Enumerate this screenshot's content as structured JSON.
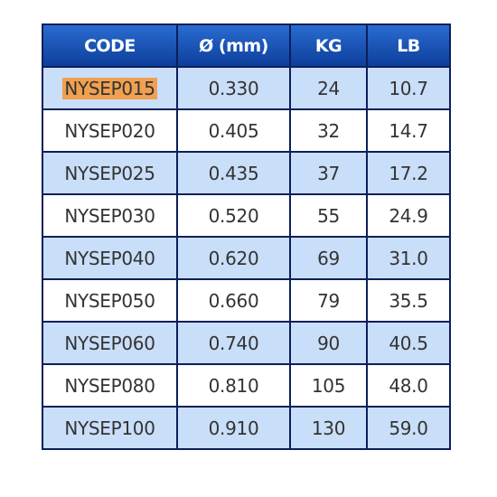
{
  "table": {
    "header": [
      "CODE",
      "Ø (mm)",
      "KG",
      "LB"
    ],
    "rows": [
      [
        "NYSEP015",
        "0.330",
        "24",
        "10.7"
      ],
      [
        "NYSEP020",
        "0.405",
        "32",
        "14.7"
      ],
      [
        "NYSEP025",
        "0.435",
        "37",
        "17.2"
      ],
      [
        "NYSEP030",
        "0.520",
        "55",
        "24.9"
      ],
      [
        "NYSEP040",
        "0.620",
        "69",
        "31.0"
      ],
      [
        "NYSEP050",
        "0.660",
        "79",
        "35.5"
      ],
      [
        "NYSEP060",
        "0.740",
        "90",
        "40.5"
      ],
      [
        "NYSEP080",
        "0.810",
        "105",
        "48.0"
      ],
      [
        "NYSEP100",
        "0.910",
        "130",
        "59.0"
      ]
    ]
  }
}
